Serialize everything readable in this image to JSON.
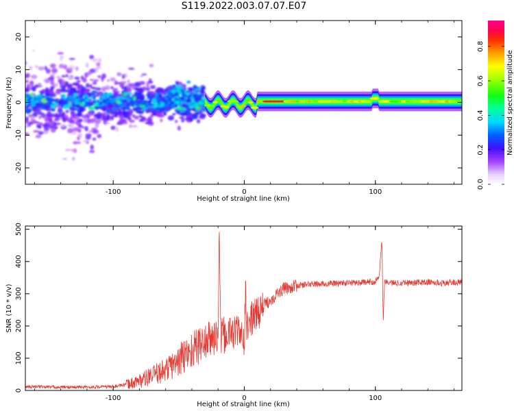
{
  "title": "S119.2022.003.07.07.E07",
  "colors": {
    "snr_line": "#e83a32",
    "frame": "#000000"
  },
  "chart_data": [
    {
      "type": "heatmap",
      "xlabel": "Height of straight line (km)",
      "ylabel": "Frequency (Hz)",
      "xlim": [
        -167,
        166
      ],
      "ylim": [
        -25,
        25
      ],
      "xticks": [
        -100,
        0,
        100
      ],
      "xtick_labels": [
        "-100",
        "0",
        "100"
      ],
      "yticks": [
        -20,
        -10,
        0,
        10,
        20
      ],
      "ytick_labels": [
        "-20",
        "-10",
        "0",
        "10",
        "20"
      ],
      "colorbar": {
        "label": "Normalized spectral amplitude",
        "range": [
          0,
          0.95
        ],
        "ticks": [
          0.0,
          0.2,
          0.4,
          0.6,
          0.8
        ],
        "tick_labels": [
          "0.0",
          "0.2",
          "0.4",
          "0.6",
          "0.8"
        ],
        "colormap": "gist_rainbow_r"
      },
      "description_segments": [
        {
          "x_range": [
            -167,
            -30
          ],
          "character": "scattered broadband energy, strongest within ±5 Hz"
        },
        {
          "x_range": [
            -30,
            166
          ],
          "character": "narrow tone near 0 Hz, peak amplitude 0.8–0.95"
        }
      ]
    },
    {
      "type": "line",
      "xlabel": "Height of straight line (km)",
      "ylabel": "SNR (10 * v/v)",
      "xlim": [
        -167,
        166
      ],
      "ylim": [
        0,
        510
      ],
      "xticks": [
        -100,
        0,
        100
      ],
      "xtick_labels": [
        "-100",
        "0",
        "100"
      ],
      "yticks": [
        0,
        100,
        200,
        300,
        400,
        500
      ],
      "ytick_labels": [
        "0",
        "100",
        "200",
        "300",
        "400",
        "500"
      ],
      "series": [
        {
          "x": [
            -167,
            -140,
            -120,
            -100,
            -90,
            -80,
            -70,
            -60,
            -50,
            -40,
            -35,
            -30,
            -25,
            -20,
            -19,
            -18,
            -15,
            -10,
            -5,
            0,
            1,
            2,
            5,
            10,
            15,
            20,
            25,
            30,
            40,
            50,
            60,
            70,
            80,
            90,
            95,
            100,
            103,
            105,
            106,
            107,
            110,
            115,
            120,
            130,
            140,
            150,
            160,
            166
          ],
          "y": [
            12,
            10,
            10,
            12,
            18,
            30,
            45,
            65,
            90,
            125,
            140,
            150,
            160,
            170,
            510,
            165,
            170,
            180,
            185,
            150,
            300,
            190,
            220,
            240,
            265,
            280,
            300,
            315,
            325,
            330,
            330,
            332,
            334,
            335,
            336,
            338,
            360,
            470,
            210,
            340,
            335,
            333,
            335,
            334,
            336,
            333,
            335,
            335
          ]
        }
      ]
    }
  ]
}
